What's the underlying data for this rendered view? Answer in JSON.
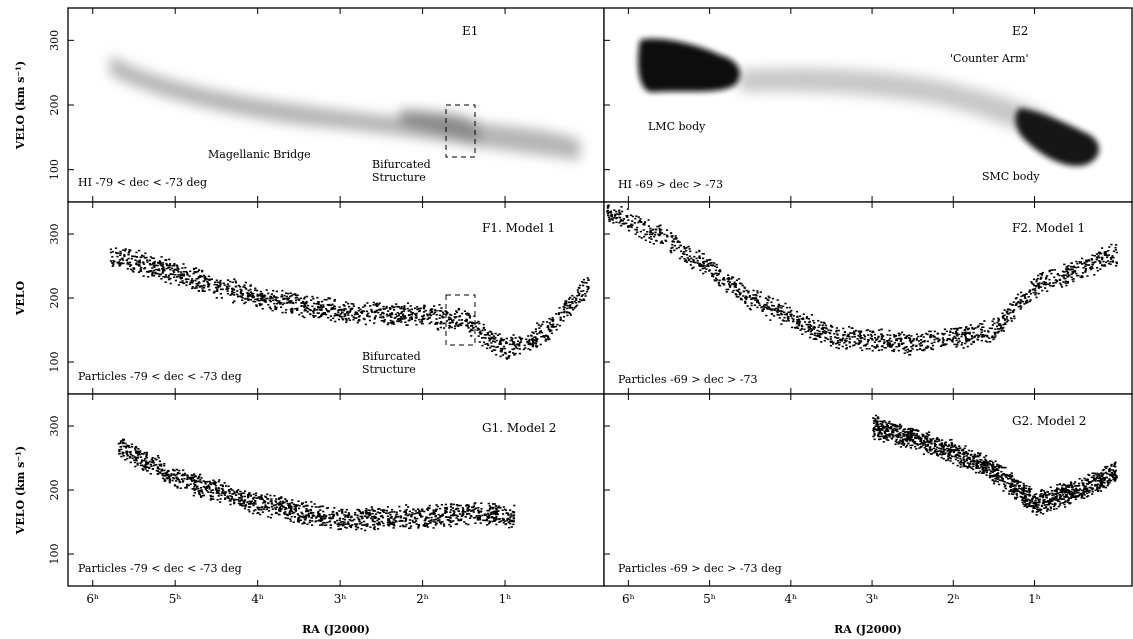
{
  "figure": {
    "ra_axis_label": "RA (J2000)",
    "velo_axis_label_full": "VELO (km s⁻¹)",
    "velo_axis_label_short": "VELO",
    "ra_ticks": [
      {
        "ra": 6,
        "label": "6ʰ"
      },
      {
        "ra": 5,
        "label": "5ʰ"
      },
      {
        "ra": 4,
        "label": "4ʰ"
      },
      {
        "ra": 3,
        "label": "3ʰ"
      },
      {
        "ra": 2,
        "label": "2ʰ"
      },
      {
        "ra": 1,
        "label": "1ʰ"
      }
    ],
    "velo_ticks": [
      100,
      200,
      300
    ],
    "ra_range": [
      6.3,
      -0.2
    ],
    "velo_range": [
      50,
      350
    ],
    "colors": {
      "ink": "#000000",
      "gas": "#4a4a4a",
      "background": "#ffffff"
    }
  },
  "chart_data": [
    {
      "id": "E1",
      "type": "heatmap",
      "title": "E1",
      "selection": "HI -79 < dec < -73 deg",
      "annotations": [
        "Magellanic Bridge",
        "Bifurcated Structure"
      ],
      "xlabel": "",
      "ylabel": "VELO (km s⁻¹)",
      "ridge": {
        "x": [
          5.7,
          5.0,
          4.0,
          3.0,
          2.0,
          1.3,
          1.0,
          0.8
        ],
        "y": [
          270,
          245,
          220,
          200,
          185,
          170,
          165,
          160
        ]
      }
    },
    {
      "id": "E2",
      "type": "heatmap",
      "title": "E2",
      "selection": "HI -69 > dec > -73",
      "annotations": [
        "'Counter Arm'",
        "LMC body",
        "SMC body"
      ],
      "xlabel": "",
      "ylabel": "",
      "ridge": {
        "x": [
          5.0,
          4.0,
          3.0,
          2.0,
          1.2,
          0.8
        ],
        "y": [
          265,
          255,
          245,
          225,
          185,
          160
        ]
      }
    },
    {
      "id": "F1",
      "type": "scatter",
      "title": "F1. Model 1",
      "selection": "Particles -79 < dec < -73 deg",
      "annotations": [
        "Bifurcated Structure"
      ],
      "xlabel": "",
      "ylabel": "VELO",
      "ridge": {
        "x": [
          5.8,
          5.0,
          4.0,
          3.0,
          2.0,
          1.5,
          1.0,
          0.5,
          0.0
        ],
        "y": [
          270,
          240,
          200,
          180,
          175,
          165,
          120,
          150,
          220
        ]
      }
    },
    {
      "id": "F2",
      "type": "scatter",
      "title": "F2. Model 1",
      "selection": "Particles -69 > dec > -73",
      "annotations": [],
      "xlabel": "",
      "ylabel": "",
      "ridge": {
        "x": [
          6.3,
          5.5,
          4.5,
          3.5,
          2.5,
          1.5,
          1.0,
          0.0
        ],
        "y": [
          340,
          290,
          200,
          140,
          130,
          150,
          220,
          270
        ]
      }
    },
    {
      "id": "G1",
      "type": "scatter",
      "title": "G1. Model 2",
      "selection": "Particles -79 < dec < -73 deg",
      "annotations": [],
      "xlabel": "RA (J2000)",
      "ylabel": "VELO (km s⁻¹)",
      "ridge": {
        "x": [
          5.7,
          5.0,
          4.0,
          3.0,
          2.0,
          1.2,
          0.9
        ],
        "y": [
          270,
          220,
          180,
          155,
          160,
          165,
          160
        ]
      }
    },
    {
      "id": "G2",
      "type": "scatter",
      "title": "G2. Model 2",
      "selection": "Particles -69 > dec > -73 deg",
      "annotations": [],
      "xlabel": "RA (J2000)",
      "ylabel": "",
      "ridge": {
        "x": [
          3.0,
          2.5,
          2.0,
          1.5,
          1.0,
          0.5,
          0.0
        ],
        "y": [
          300,
          280,
          260,
          230,
          180,
          200,
          230
        ]
      }
    }
  ]
}
